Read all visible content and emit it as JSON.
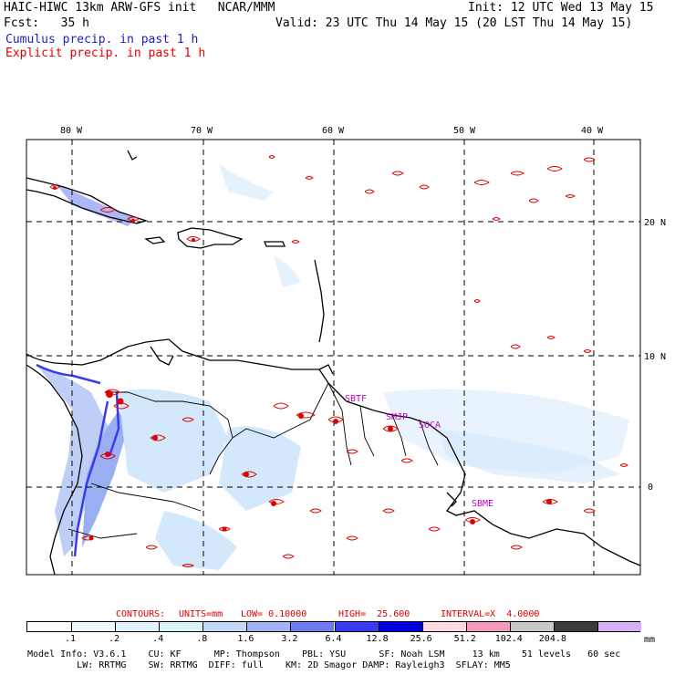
{
  "header": {
    "title": "HAIC-HIWC 13km ARW-GFS init   NCAR/MMM",
    "init": "Init: 12 UTC Wed 13 May 15",
    "fcst": "Fcst:   35 h",
    "valid": "Valid: 23 UTC Thu 14 May 15 (20 LST Thu 14 May 15)",
    "legend_cumulus": "Cumulus precip. in past 1 h",
    "legend_explicit": "Explicit precip. in past 1 h"
  },
  "colors": {
    "cumulus": "#2020c0",
    "explicit": "#e00000",
    "station": "#c000c0"
  },
  "map": {
    "lon_labels": [
      "80 W",
      "70 W",
      "60 W",
      "50 W",
      "40 W"
    ],
    "lat_labels": [
      "20 N",
      "10 N",
      "0"
    ],
    "stations": [
      "SBTF",
      "SMJP",
      "SOCA",
      "SBME"
    ]
  },
  "contours_line": {
    "label": "CONTOURS:",
    "units": "UNITS=mm",
    "low": "LOW= 0.10000",
    "high": "HIGH=  25.600",
    "interval": "INTERVAL=X  4.0000"
  },
  "colorbar": {
    "ticks": [
      ".1",
      ".2",
      ".4",
      ".8",
      "1.6",
      "3.2",
      "6.4",
      "12.8",
      "25.6",
      "51.2",
      "102.4",
      "204.8"
    ],
    "colors": [
      "#ffffff",
      "#f2f9ff",
      "#e6f3ff",
      "#d9f5f5",
      "#c4d8f7",
      "#a3b2f5",
      "#6f7cf0",
      "#3a3aee",
      "#0000dd",
      "#ffd8e0",
      "#f598be",
      "#c8c8c8",
      "#3c3c3c",
      "#d6aff6"
    ],
    "unit": "mm"
  },
  "model_info": {
    "line1": "Model Info: V3.6.1    CU: KF      MP: Thompson    PBL: YSU      SF: Noah LSM     13 km    51 levels   60 sec",
    "line2": "         LW: RRTMG    SW: RRTMG  DIFF: full    KM: 2D Smagor DAMP: Rayleigh3  SFLAY: MM5"
  }
}
